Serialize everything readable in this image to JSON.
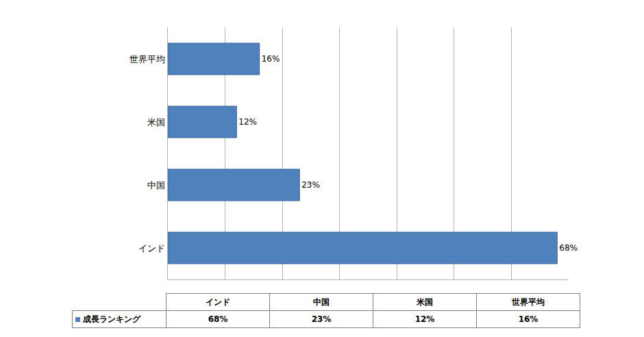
{
  "chart_data": {
    "type": "bar",
    "orientation": "horizontal",
    "categories": [
      "インド",
      "中国",
      "米国",
      "世界平均"
    ],
    "series": [
      {
        "name": "成長ランキング",
        "color": "#4f81bd",
        "values": [
          68,
          23,
          12,
          16
        ],
        "value_labels": [
          "68%",
          "23%",
          "12%",
          "16%"
        ]
      }
    ],
    "xlim": [
      0,
      70
    ],
    "xticks": [
      0,
      10,
      20,
      30,
      40,
      50,
      60,
      70
    ],
    "grid": true,
    "data_labels": true,
    "tick_labels": "y"
  }
}
